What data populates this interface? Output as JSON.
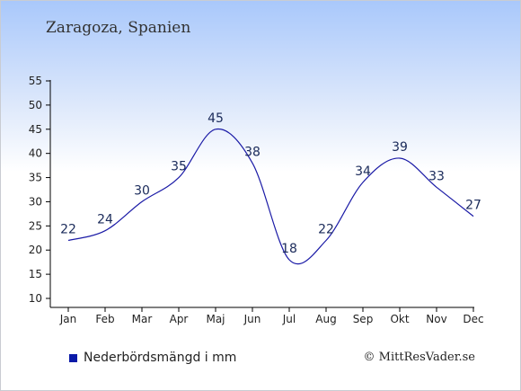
{
  "title": "Zaragoza, Spanien",
  "legend": {
    "label": "Nederbördsmängd i mm"
  },
  "credit": "© MittResVader.se",
  "colors": {
    "series": "#1a1aa6",
    "legend_marker": "#0a1aa8",
    "axis": "#000000"
  },
  "chart_data": {
    "type": "line",
    "categories": [
      "Jan",
      "Feb",
      "Mar",
      "Apr",
      "Maj",
      "Jun",
      "Jul",
      "Aug",
      "Sep",
      "Okt",
      "Nov",
      "Dec"
    ],
    "series": [
      {
        "name": "Nederbördsmängd i mm",
        "values": [
          22,
          24,
          30,
          35,
          45,
          38,
          18,
          22,
          34,
          39,
          33,
          27
        ]
      }
    ],
    "ylim": [
      10,
      55
    ],
    "yticks": [
      10,
      15,
      20,
      25,
      30,
      35,
      40,
      45,
      50,
      55
    ],
    "grid": false,
    "legend_position": "bottom-left"
  }
}
